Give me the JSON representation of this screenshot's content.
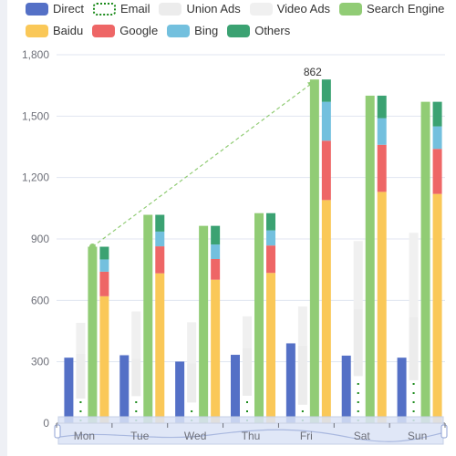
{
  "chart_data": {
    "type": "bar",
    "categories": [
      "Mon",
      "Tue",
      "Wed",
      "Thu",
      "Fri",
      "Sat",
      "Sun"
    ],
    "y_ticks": [
      "0",
      "300",
      "600",
      "900",
      "1,200",
      "1,500",
      "1,800"
    ],
    "ylim": [
      0,
      1800
    ],
    "grid": true,
    "legend_position": "top",
    "series": [
      {
        "name": "Direct",
        "color": "#5470c6",
        "stack": "direct",
        "values": [
          320,
          332,
          301,
          334,
          390,
          330,
          320
        ]
      },
      {
        "name": "Email",
        "color": "#1a8a1a",
        "stack": "ad",
        "style": "dotted",
        "values": [
          120,
          132,
          101,
          134,
          90,
          230,
          210
        ]
      },
      {
        "name": "Union Ads",
        "color": "#ececec",
        "stack": "ad",
        "values": [
          220,
          182,
          191,
          234,
          290,
          330,
          310
        ]
      },
      {
        "name": "Video Ads",
        "color": "#f0f0f0",
        "stack": "ad",
        "values": [
          150,
          232,
          201,
          154,
          190,
          330,
          410
        ]
      },
      {
        "name": "Search Engine",
        "color": "#91cc75",
        "stack": "search_total",
        "values": [
          862,
          1018,
          964,
          1026,
          1679,
          1600,
          1570
        ]
      },
      {
        "name": "Baidu",
        "color": "#fac858",
        "stack": "search",
        "values": [
          620,
          732,
          701,
          734,
          1090,
          1130,
          1120
        ]
      },
      {
        "name": "Google",
        "color": "#ee6666",
        "stack": "search",
        "values": [
          120,
          132,
          101,
          134,
          290,
          230,
          220
        ]
      },
      {
        "name": "Bing",
        "color": "#73c0de",
        "stack": "search",
        "values": [
          60,
          72,
          71,
          74,
          190,
          130,
          110
        ]
      },
      {
        "name": "Others",
        "color": "#3ba272",
        "stack": "search",
        "values": [
          62,
          82,
          91,
          84,
          109,
          110,
          120
        ]
      }
    ],
    "annotation": {
      "label": "862",
      "from": "Mon",
      "to": "Fri",
      "style": "dashed-arrow"
    }
  },
  "legend_rows": [
    [
      "Direct",
      "Email",
      "Union Ads",
      "Video Ads",
      "Search Engine"
    ],
    [
      "Baidu",
      "Google",
      "Bing",
      "Others"
    ]
  ]
}
